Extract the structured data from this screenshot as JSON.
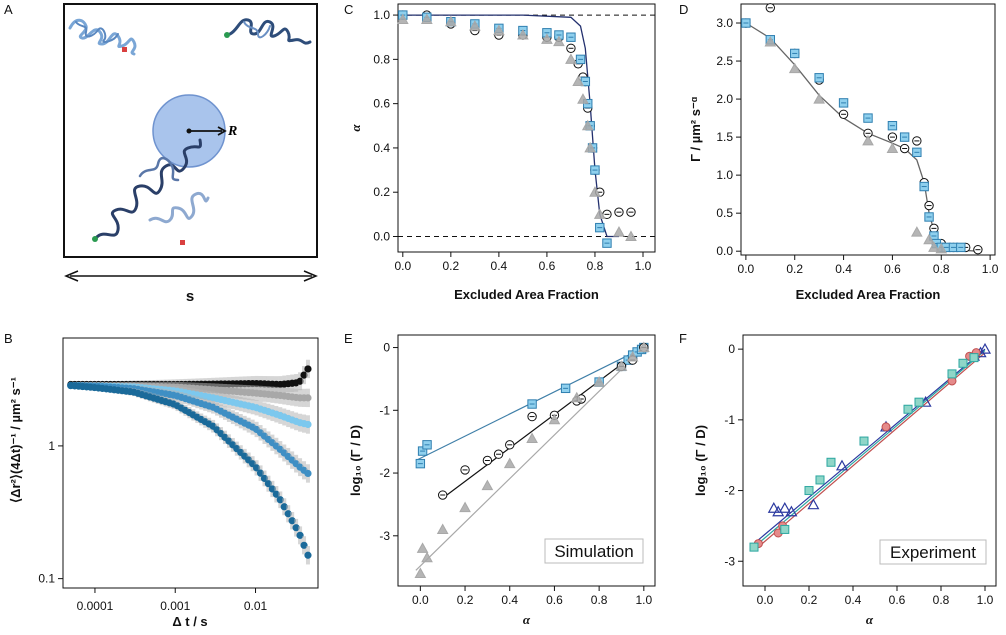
{
  "panel_labels": {
    "A": "A",
    "B": "B",
    "C": "C",
    "D": "D",
    "E": "E",
    "F": "F"
  },
  "schematic": {
    "radius_label": "R",
    "size_label": "s"
  },
  "colors": {
    "black": "#111111",
    "grey": "#a8a8a8",
    "blue": "#3f8fc4",
    "lightblue": "#7cc8ee",
    "darkblue": "#1b6a9a",
    "navy": "#23306e",
    "green": "#2f9a6a",
    "red": "#c0392b",
    "teal": "#2ba6a0"
  },
  "chart_data": [
    {
      "id": "B",
      "type": "scatter",
      "xlabel": "Δ t / s",
      "ylabel": "⟨Δr²⟩(4Δt)⁻¹ / µm² s⁻¹",
      "xscale": "log",
      "yscale": "log",
      "xlim": [
        4e-05,
        0.06
      ],
      "ylim": [
        0.085,
        6.5
      ],
      "xticks": [
        "0.0001",
        "0.001",
        "0.01"
      ],
      "yticks": [
        "0.1",
        "1"
      ],
      "series": [
        {
          "color": "#111111",
          "values": [
            [
              5e-05,
              2.9
            ],
            [
              0.0001,
              2.9
            ],
            [
              0.0003,
              2.9
            ],
            [
              0.001,
              2.9
            ],
            [
              0.003,
              2.92
            ],
            [
              0.01,
              2.95
            ],
            [
              0.02,
              2.9
            ],
            [
              0.035,
              3.0
            ],
            [
              0.045,
              3.8
            ]
          ]
        },
        {
          "color": "#a8a8a8",
          "values": [
            [
              5e-05,
              2.85
            ],
            [
              0.0001,
              2.85
            ],
            [
              0.0003,
              2.83
            ],
            [
              0.001,
              2.78
            ],
            [
              0.003,
              2.65
            ],
            [
              0.01,
              2.5
            ],
            [
              0.02,
              2.4
            ],
            [
              0.035,
              2.3
            ],
            [
              0.045,
              2.3
            ]
          ]
        },
        {
          "color": "#7cc8ee",
          "values": [
            [
              5e-05,
              2.85
            ],
            [
              0.0001,
              2.83
            ],
            [
              0.0003,
              2.78
            ],
            [
              0.001,
              2.6
            ],
            [
              0.003,
              2.3
            ],
            [
              0.01,
              1.95
            ],
            [
              0.02,
              1.7
            ],
            [
              0.035,
              1.5
            ],
            [
              0.045,
              1.45
            ]
          ]
        },
        {
          "color": "#3f8fc4",
          "values": [
            [
              5e-05,
              2.85
            ],
            [
              0.0001,
              2.82
            ],
            [
              0.0003,
              2.7
            ],
            [
              0.001,
              2.4
            ],
            [
              0.003,
              1.95
            ],
            [
              0.01,
              1.35
            ],
            [
              0.02,
              0.95
            ],
            [
              0.035,
              0.7
            ],
            [
              0.045,
              0.62
            ]
          ]
        },
        {
          "color": "#1b6a9a",
          "values": [
            [
              5e-05,
              2.85
            ],
            [
              0.0001,
              2.75
            ],
            [
              0.0003,
              2.55
            ],
            [
              0.001,
              2.05
            ],
            [
              0.003,
              1.4
            ],
            [
              0.01,
              0.7
            ],
            [
              0.02,
              0.4
            ],
            [
              0.035,
              0.22
            ],
            [
              0.045,
              0.15
            ]
          ]
        }
      ]
    },
    {
      "id": "C",
      "type": "scatter",
      "xlabel": "Excluded Area Fraction",
      "ylabel": "α",
      "xlim": [
        -0.02,
        1.05
      ],
      "ylim": [
        -0.07,
        1.05
      ],
      "xticks": [
        "0.0",
        "0.2",
        "0.4",
        "0.6",
        "0.8",
        "1.0"
      ],
      "yticks": [
        "0.0",
        "0.2",
        "0.4",
        "0.6",
        "0.8",
        "1.0"
      ],
      "series": [
        {
          "marker": "circle",
          "color": "#111111",
          "x": [
            0,
            0.1,
            0.2,
            0.3,
            0.4,
            0.5,
            0.6,
            0.65,
            0.7,
            0.73,
            0.75,
            0.76,
            0.77,
            0.78,
            0.79,
            0.8,
            0.82,
            0.85,
            0.9,
            0.95
          ],
          "y": [
            1.0,
            1.0,
            0.96,
            0.93,
            0.91,
            0.91,
            0.9,
            0.9,
            0.85,
            0.78,
            0.72,
            0.7,
            0.58,
            0.5,
            0.4,
            0.3,
            0.2,
            0.1,
            0.11,
            0.11
          ]
        },
        {
          "marker": "square",
          "color": "#4a9fd0",
          "x": [
            0,
            0.1,
            0.2,
            0.3,
            0.4,
            0.5,
            0.6,
            0.65,
            0.7,
            0.74,
            0.76,
            0.77,
            0.78,
            0.79,
            0.8,
            0.82,
            0.85
          ],
          "y": [
            1.0,
            0.99,
            0.97,
            0.96,
            0.94,
            0.93,
            0.92,
            0.91,
            0.9,
            0.8,
            0.7,
            0.6,
            0.5,
            0.4,
            0.3,
            0.04,
            -0.03
          ]
        },
        {
          "marker": "triangle",
          "color": "#a8a8a8",
          "x": [
            0,
            0.1,
            0.2,
            0.3,
            0.4,
            0.5,
            0.6,
            0.65,
            0.7,
            0.73,
            0.75,
            0.77,
            0.78,
            0.8,
            0.82,
            0.9,
            0.95
          ],
          "y": [
            0.98,
            0.98,
            0.97,
            0.95,
            0.93,
            0.91,
            0.89,
            0.88,
            0.8,
            0.7,
            0.62,
            0.5,
            0.4,
            0.2,
            0.1,
            0.02,
            0.0
          ]
        }
      ],
      "fit": {
        "x": [
          0,
          0.5,
          0.7,
          0.74,
          0.76,
          0.78,
          0.8,
          0.82,
          0.85,
          0.9
        ],
        "y": [
          1.0,
          1.0,
          0.99,
          0.95,
          0.85,
          0.6,
          0.3,
          0.1,
          0.0,
          0.0
        ]
      },
      "hlines": [
        1.0,
        0.0
      ]
    },
    {
      "id": "D",
      "type": "scatter",
      "xlabel": "Excluded Area Fraction",
      "ylabel": "Γ / µm² s⁻ᵅ",
      "xlim": [
        -0.02,
        1.02
      ],
      "ylim": [
        -0.05,
        3.25
      ],
      "xticks": [
        "0.0",
        "0.2",
        "0.4",
        "0.6",
        "0.8",
        "1.0"
      ],
      "yticks": [
        "0.0",
        "0.5",
        "1.0",
        "1.5",
        "2.0",
        "2.5",
        "3.0"
      ],
      "series": [
        {
          "marker": "circle",
          "color": "#111111",
          "x": [
            0,
            0.1,
            0.2,
            0.3,
            0.4,
            0.5,
            0.6,
            0.65,
            0.7,
            0.73,
            0.75,
            0.77,
            0.8,
            0.85,
            0.9,
            0.95
          ],
          "y": [
            3.0,
            3.2,
            2.6,
            2.25,
            1.8,
            1.55,
            1.5,
            1.35,
            1.45,
            0.9,
            0.6,
            0.3,
            0.1,
            0.05,
            0.05,
            0.02
          ]
        },
        {
          "marker": "square",
          "color": "#4a9fd0",
          "x": [
            0,
            0.1,
            0.2,
            0.3,
            0.4,
            0.5,
            0.6,
            0.65,
            0.7,
            0.73,
            0.75,
            0.77,
            0.78,
            0.8,
            0.82,
            0.85,
            0.88
          ],
          "y": [
            3.0,
            2.78,
            2.6,
            2.28,
            1.95,
            1.75,
            1.65,
            1.5,
            1.3,
            0.85,
            0.45,
            0.2,
            0.1,
            0.05,
            0.05,
            0.05,
            0.05
          ]
        },
        {
          "marker": "triangle",
          "color": "#a8a8a8",
          "x": [
            0.1,
            0.2,
            0.3,
            0.5,
            0.6,
            0.7,
            0.75,
            0.77,
            0.8
          ],
          "y": [
            2.75,
            2.4,
            2.0,
            1.45,
            1.35,
            0.25,
            0.15,
            0.05,
            0.03
          ]
        }
      ],
      "fit": {
        "x": [
          0,
          0.1,
          0.2,
          0.3,
          0.4,
          0.5,
          0.6,
          0.65,
          0.7,
          0.73,
          0.75,
          0.78,
          0.8,
          0.85,
          0.95
        ],
        "y": [
          3.0,
          2.8,
          2.45,
          2.05,
          1.75,
          1.55,
          1.42,
          1.35,
          1.2,
          0.9,
          0.5,
          0.15,
          0.05,
          0.02,
          0.0
        ]
      }
    },
    {
      "id": "E",
      "type": "scatter",
      "annotation": "Simulation",
      "xlabel": "α",
      "ylabel": "log₁₀ (Γ / D)",
      "xlim": [
        -0.1,
        1.05
      ],
      "ylim": [
        -3.8,
        0.2
      ],
      "xticks": [
        "0.0",
        "0.2",
        "0.4",
        "0.6",
        "0.8",
        "1.0"
      ],
      "yticks": [
        "-3",
        "-2",
        "-1",
        "0"
      ],
      "series": [
        {
          "marker": "square",
          "color": "#4a9fd0",
          "x": [
            0,
            0.01,
            0.03,
            0.5,
            0.65,
            0.8,
            0.9,
            0.93,
            0.95,
            0.97,
            0.99,
            1.0
          ],
          "y": [
            -1.85,
            -1.65,
            -1.55,
            -0.9,
            -0.65,
            -0.55,
            -0.3,
            -0.2,
            -0.12,
            -0.07,
            -0.03,
            0.0
          ]
        },
        {
          "marker": "circle",
          "color": "#111111",
          "x": [
            0.1,
            0.2,
            0.3,
            0.35,
            0.4,
            0.5,
            0.6,
            0.7,
            0.72,
            0.9,
            0.95,
            1.0
          ],
          "y": [
            -2.35,
            -1.95,
            -1.8,
            -1.7,
            -1.55,
            -1.1,
            -1.08,
            -0.85,
            -0.82,
            -0.3,
            -0.2,
            0.0
          ]
        },
        {
          "marker": "triangle",
          "color": "#a8a8a8",
          "x": [
            0,
            0.01,
            0.03,
            0.1,
            0.2,
            0.3,
            0.4,
            0.5,
            0.6,
            0.7,
            0.8,
            0.9,
            0.95,
            1.0
          ],
          "y": [
            -3.6,
            -3.2,
            -3.35,
            -2.9,
            -2.55,
            -2.2,
            -1.85,
            -1.45,
            -1.15,
            -0.8,
            -0.55,
            -0.3,
            -0.15,
            0.0
          ]
        }
      ],
      "fits": [
        {
          "color": "#3f7fa8",
          "x": [
            -0.02,
            1.0
          ],
          "y": [
            -1.8,
            0.0
          ]
        },
        {
          "color": "#111111",
          "x": [
            0.1,
            1.0
          ],
          "y": [
            -2.4,
            0.0
          ]
        },
        {
          "color": "#a8a8a8",
          "x": [
            -0.02,
            1.0
          ],
          "y": [
            -3.55,
            0.0
          ]
        }
      ]
    },
    {
      "id": "F",
      "type": "scatter",
      "annotation": "Experiment",
      "xlabel": "α",
      "ylabel": "log₁₀ (Γ / D)",
      "xlim": [
        -0.1,
        1.05
      ],
      "ylim": [
        -3.35,
        0.2
      ],
      "xticks": [
        "0.0",
        "0.2",
        "0.4",
        "0.6",
        "0.8",
        "1.0"
      ],
      "yticks": [
        "-3",
        "-2",
        "-1",
        "0"
      ],
      "series": [
        {
          "marker": "triangle",
          "color": "#2b39a0",
          "x": [
            0.04,
            0.06,
            0.09,
            0.12,
            0.22,
            0.35,
            0.55,
            0.73,
            0.95,
            0.98,
            1.0
          ],
          "y": [
            -2.25,
            -2.3,
            -2.25,
            -2.3,
            -2.2,
            -1.65,
            -1.1,
            -0.75,
            -0.1,
            -0.05,
            0.0
          ]
        },
        {
          "marker": "circle",
          "color": "#c05050",
          "x": [
            -0.03,
            0.06,
            0.08,
            0.55,
            0.85,
            0.93,
            0.96
          ],
          "y": [
            -2.75,
            -2.6,
            -2.5,
            -1.1,
            -0.45,
            -0.1,
            -0.05
          ]
        },
        {
          "marker": "square",
          "color": "#2ba6a0",
          "x": [
            -0.05,
            0.09,
            0.2,
            0.25,
            0.3,
            0.45,
            0.65,
            0.7,
            0.85,
            0.9,
            0.95
          ],
          "y": [
            -2.8,
            -2.55,
            -2.0,
            -1.85,
            -1.6,
            -1.3,
            -0.85,
            -0.75,
            -0.35,
            -0.2,
            -0.12
          ]
        }
      ],
      "fits": [
        {
          "color": "#2b39a0",
          "x": [
            -0.05,
            1.0
          ],
          "y": [
            -2.75,
            0.0
          ]
        },
        {
          "color": "#c05050",
          "x": [
            -0.05,
            1.0
          ],
          "y": [
            -2.85,
            -0.05
          ]
        },
        {
          "color": "#2ba6a0",
          "x": [
            -0.05,
            1.0
          ],
          "y": [
            -2.8,
            -0.02
          ]
        }
      ]
    }
  ]
}
